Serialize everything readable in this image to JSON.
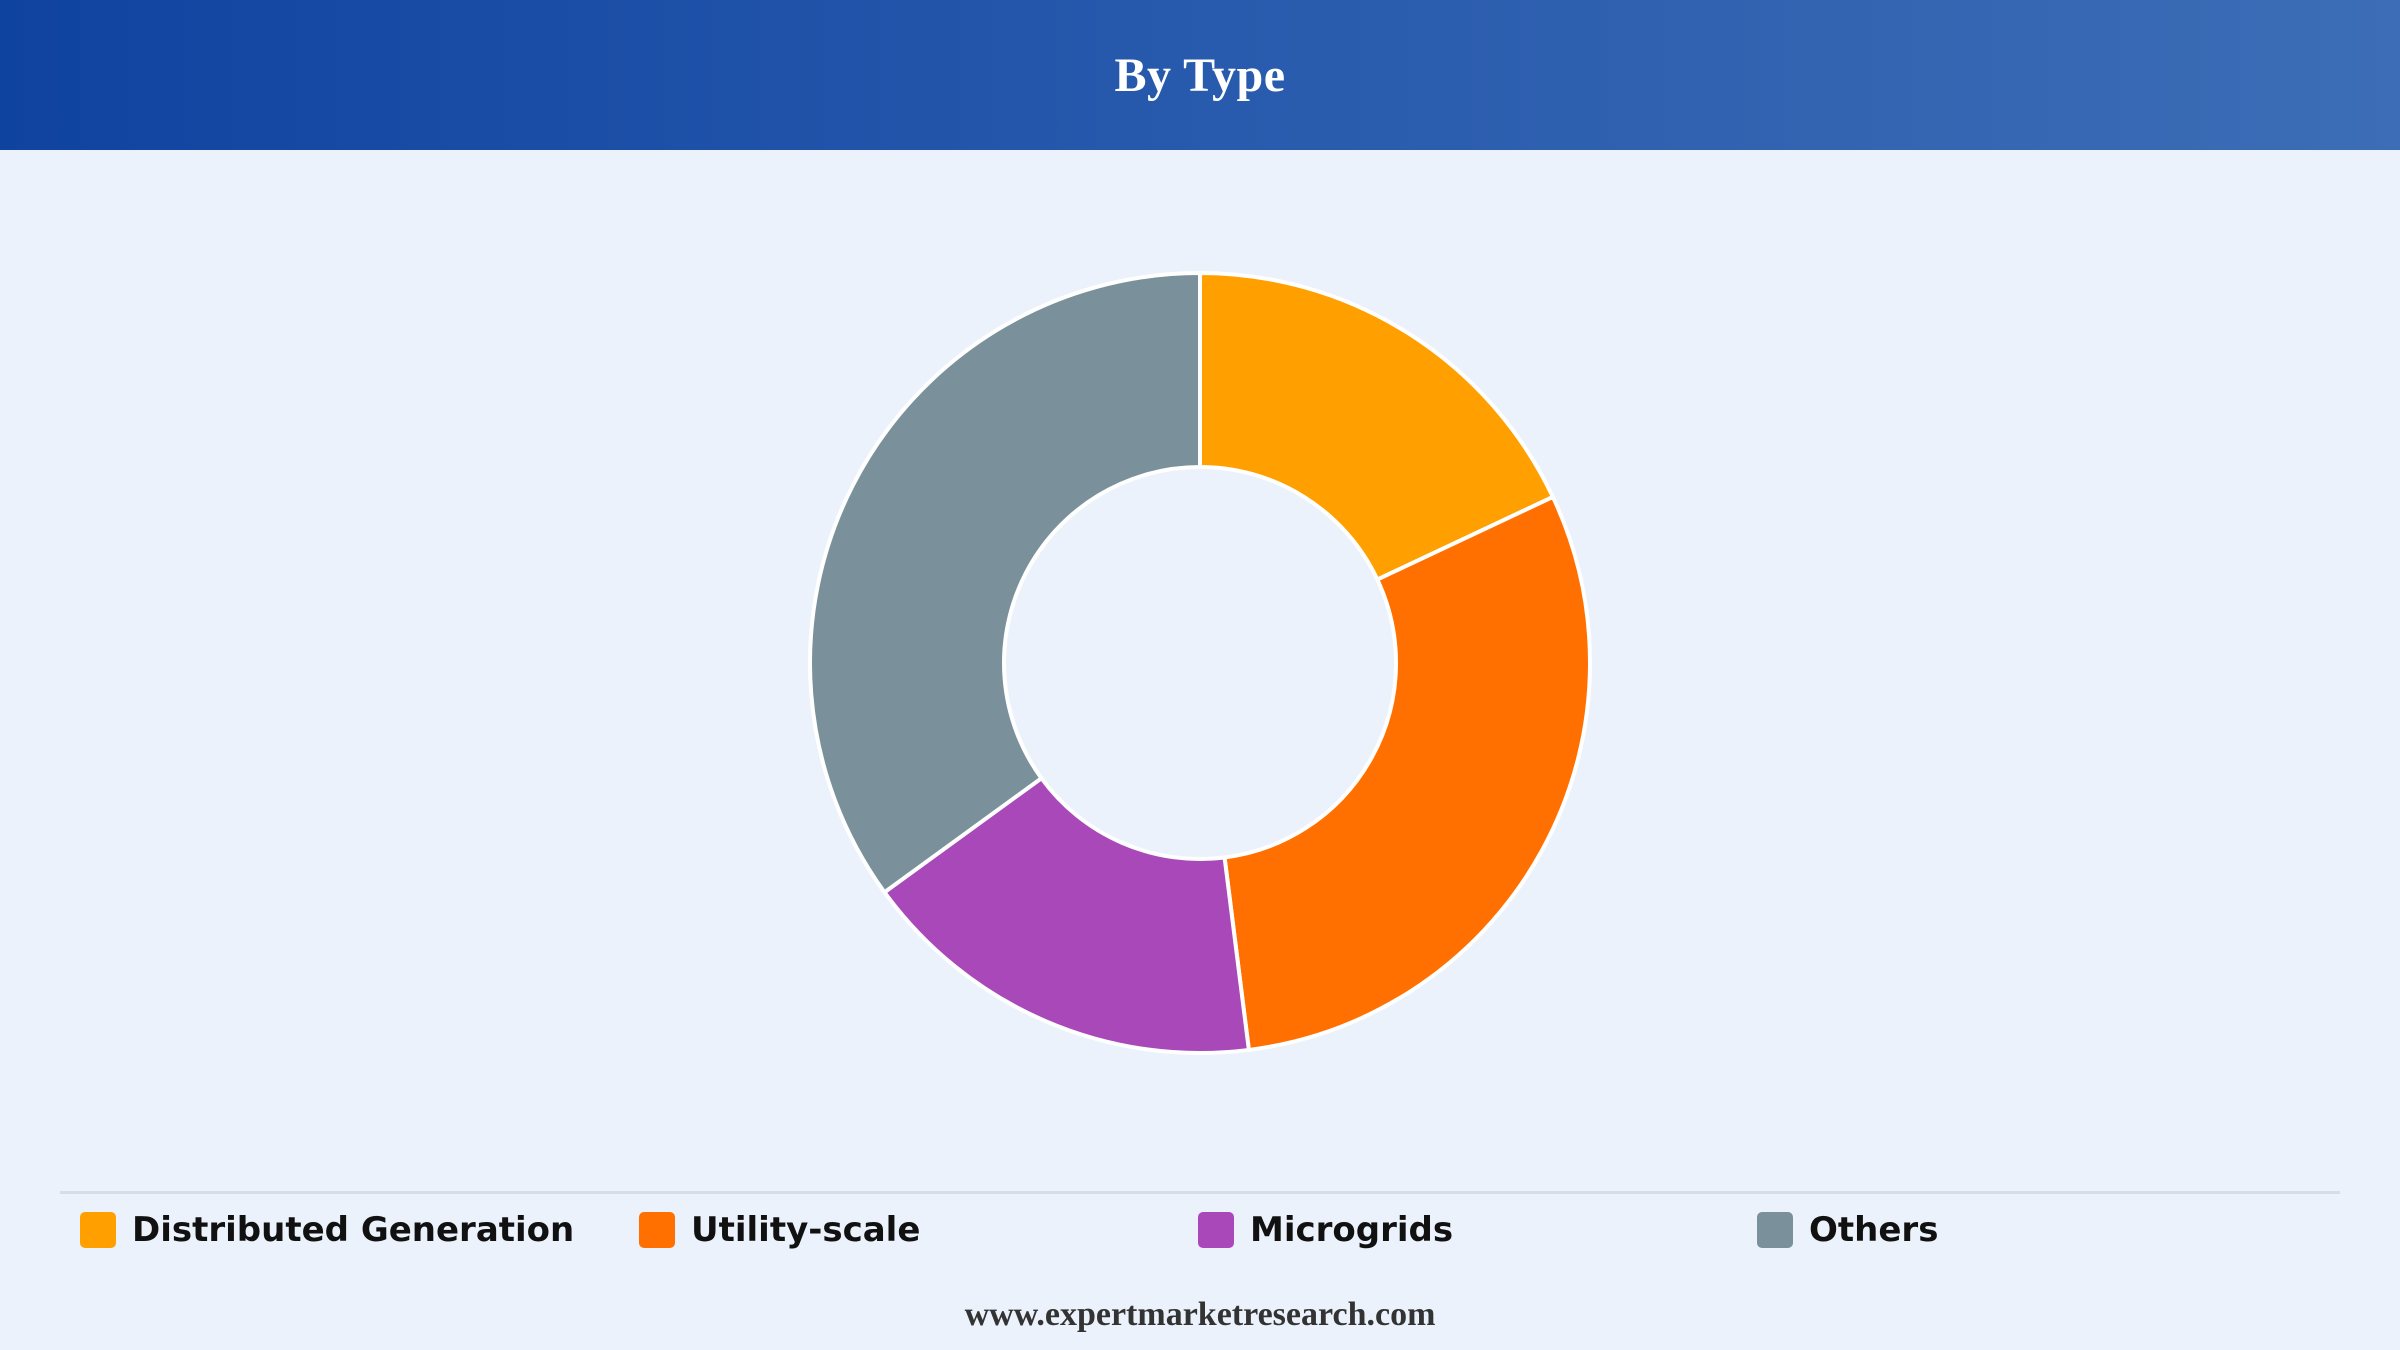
{
  "header": {
    "title": "By Type"
  },
  "chart_data": {
    "type": "pie",
    "variant": "donut",
    "categories": [
      "Distributed Generation",
      "Utility-scale",
      "Microgrids",
      "Others"
    ],
    "values": [
      18,
      30,
      17,
      35
    ],
    "colors": [
      "#ffa000",
      "#ff7000",
      "#a948b9",
      "#7a909a"
    ],
    "legend_position": "bottom",
    "start_angle": "top, clockwise"
  },
  "footer": {
    "source": "www.expertmarketresearch.com"
  }
}
